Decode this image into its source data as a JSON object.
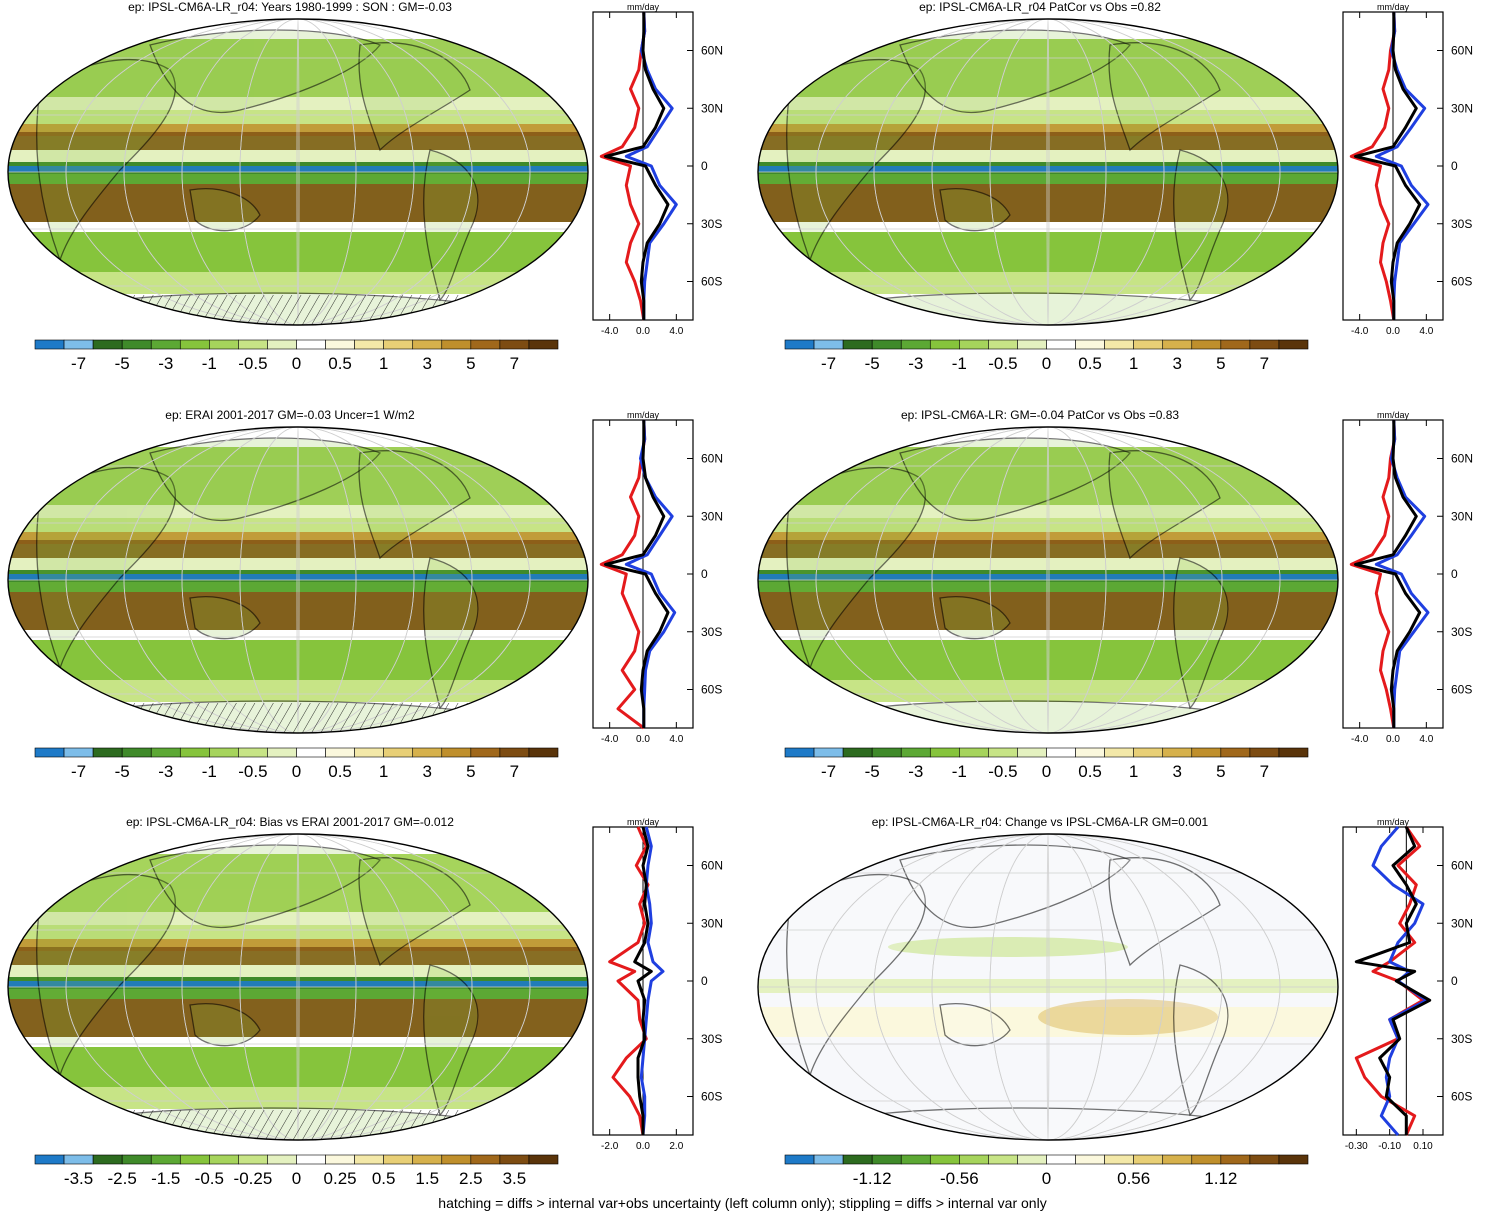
{
  "footnote": "hatching = diffs > internal var+obs uncertainty (left column only); stippling = diffs > internal var only",
  "colors": {
    "palette": [
      "#1e7ac8",
      "#7dbde9",
      "#2d6b1f",
      "#3f8a2a",
      "#5ca834",
      "#86c43c",
      "#a6d45c",
      "#c7e486",
      "#e4f1c0",
      "#ffffff",
      "#fbf8dd",
      "#f3e8a8",
      "#e8cf76",
      "#d6b14c",
      "#bf8f2c",
      "#a0681b",
      "#7d4c12",
      "#5a340a"
    ],
    "obs_line": "#e41a1c",
    "model_line": "#1f3fe0",
    "mean_line": "#000000"
  },
  "panels": [
    {
      "title": "ep: IPSL-CM6A-LR_r04: Years 1980-1999 : SON : GM=-0.03",
      "profile_unit": "mm/day",
      "lat_labels": [
        "60N",
        "30N",
        "0",
        "30S",
        "60S"
      ],
      "profile_ticks": [
        "-4.0",
        "0.0",
        "4.0"
      ],
      "colorbar_labels": [
        "-7",
        "-5",
        "-3",
        "-1",
        "-0.5",
        "0",
        "0.5",
        "1",
        "3",
        "5",
        "7"
      ],
      "chart_data": {
        "type": "line",
        "xlim": [
          -6,
          6
        ],
        "ylim": [
          -80,
          80
        ],
        "x_ticks": [
          -4,
          0,
          4
        ],
        "series": [
          {
            "role": "obs",
            "lat": [
              80,
              70,
              60,
              50,
              40,
              30,
              20,
              10,
              5,
              0,
              -10,
              -20,
              -30,
              -40,
              -50,
              -60,
              -70,
              -80
            ],
            "values": [
              0.1,
              0.2,
              -0.2,
              -0.5,
              -1.5,
              -0.5,
              -1.0,
              -2.5,
              -5.0,
              -1.5,
              -2.0,
              -1.5,
              -0.5,
              -1.5,
              -2.0,
              -1.0,
              -0.3,
              0.1
            ]
          },
          {
            "role": "model",
            "lat": [
              80,
              70,
              60,
              50,
              40,
              30,
              20,
              10,
              5,
              0,
              -10,
              -20,
              -30,
              -40,
              -50,
              -60,
              -70,
              -80
            ],
            "values": [
              0.1,
              0.2,
              -0.2,
              0.5,
              1.5,
              3.5,
              2.0,
              0.5,
              -2.0,
              1.0,
              2.0,
              4.0,
              2.5,
              0.8,
              0.5,
              0.2,
              0.1,
              0.1
            ]
          },
          {
            "role": "mean",
            "lat": [
              80,
              70,
              60,
              50,
              40,
              30,
              20,
              10,
              5,
              0,
              -10,
              -20,
              -30,
              -40,
              -50,
              -60,
              -70,
              -80
            ],
            "values": [
              0.1,
              0.1,
              0.0,
              0.3,
              1.2,
              2.5,
              1.5,
              0.0,
              -4.5,
              0.3,
              1.5,
              3.0,
              2.0,
              0.5,
              0.0,
              -0.2,
              0.1,
              0.1
            ]
          }
        ]
      }
    },
    {
      "title": "ep: IPSL-CM6A-LR_r04 PatCor vs Obs =0.82",
      "profile_unit": "mm/day",
      "lat_labels": [
        "60N",
        "30N",
        "0",
        "30S",
        "60S"
      ],
      "profile_ticks": [
        "-4.0",
        "0.0",
        "4.0"
      ],
      "colorbar_labels": [
        "-7",
        "-5",
        "-3",
        "-1",
        "-0.5",
        "0",
        "0.5",
        "1",
        "3",
        "5",
        "7"
      ],
      "chart_data": {
        "type": "line",
        "xlim": [
          -6,
          6
        ],
        "ylim": [
          -80,
          80
        ],
        "x_ticks": [
          -4,
          0,
          4
        ],
        "series": [
          {
            "role": "obs",
            "lat": [
              80,
              70,
              60,
              50,
              40,
              30,
              20,
              10,
              5,
              0,
              -10,
              -20,
              -30,
              -40,
              -50,
              -60,
              -70,
              -80
            ],
            "values": [
              0.1,
              0.2,
              -0.3,
              -0.5,
              -1.2,
              -0.5,
              -1.0,
              -2.5,
              -5.0,
              -1.5,
              -2.0,
              -1.5,
              -0.5,
              -1.2,
              -1.5,
              -0.8,
              -0.3,
              0.1
            ]
          },
          {
            "role": "model",
            "lat": [
              80,
              70,
              60,
              50,
              40,
              30,
              20,
              10,
              5,
              0,
              -10,
              -20,
              -30,
              -40,
              -50,
              -60,
              -70,
              -80
            ],
            "values": [
              0.1,
              0.2,
              -0.2,
              0.5,
              1.5,
              3.8,
              2.2,
              0.5,
              -2.0,
              1.0,
              2.2,
              4.2,
              2.5,
              0.8,
              0.5,
              0.2,
              0.1,
              0.1
            ]
          },
          {
            "role": "mean",
            "lat": [
              80,
              70,
              60,
              50,
              40,
              30,
              20,
              10,
              5,
              0,
              -10,
              -20,
              -30,
              -40,
              -50,
              -60,
              -70,
              -80
            ],
            "values": [
              0.1,
              0.1,
              0.0,
              0.3,
              1.2,
              2.8,
              1.5,
              0.0,
              -4.5,
              0.3,
              1.5,
              3.2,
              2.0,
              0.5,
              0.0,
              -0.2,
              0.1,
              0.1
            ]
          }
        ]
      }
    },
    {
      "title": "ep: ERAI 2001-2017 GM=-0.03 Uncer=1 W/m2",
      "profile_unit": "mm/day",
      "lat_labels": [
        "60N",
        "30N",
        "0",
        "30S",
        "60S"
      ],
      "profile_ticks": [
        "-4.0",
        "0.0",
        "4.0"
      ],
      "colorbar_labels": [
        "-7",
        "-5",
        "-3",
        "-1",
        "-0.5",
        "0",
        "0.5",
        "1",
        "3",
        "5",
        "7"
      ],
      "chart_data": {
        "type": "line",
        "xlim": [
          -6,
          6
        ],
        "ylim": [
          -80,
          80
        ],
        "x_ticks": [
          -4,
          0,
          4
        ],
        "series": [
          {
            "role": "obs",
            "lat": [
              80,
              70,
              60,
              50,
              40,
              30,
              20,
              10,
              5,
              0,
              -10,
              -20,
              -30,
              -40,
              -50,
              -60,
              -70,
              -80
            ],
            "values": [
              0.1,
              0.2,
              -0.2,
              -0.5,
              -1.5,
              -0.5,
              -1.0,
              -2.5,
              -5.0,
              -2.0,
              -2.5,
              -1.5,
              -0.5,
              -1.0,
              -2.5,
              -1.0,
              -3.0,
              0.1
            ]
          },
          {
            "role": "model",
            "lat": [
              80,
              70,
              60,
              50,
              40,
              30,
              20,
              10,
              5,
              0,
              -10,
              -20,
              -30,
              -40,
              -50,
              -60,
              -70,
              -80
            ],
            "values": [
              0.1,
              0.2,
              -0.3,
              0.3,
              1.5,
              3.5,
              2.0,
              0.5,
              -2.0,
              1.0,
              2.0,
              3.8,
              2.5,
              0.8,
              0.3,
              0.2,
              0.1,
              0.1
            ]
          },
          {
            "role": "mean",
            "lat": [
              80,
              70,
              60,
              50,
              40,
              30,
              20,
              10,
              5,
              0,
              -10,
              -20,
              -30,
              -40,
              -50,
              -60,
              -70,
              -80
            ],
            "values": [
              0.1,
              0.1,
              0.0,
              0.3,
              1.2,
              2.5,
              1.5,
              0.0,
              -4.5,
              0.3,
              1.5,
              3.0,
              2.0,
              0.5,
              0.0,
              -0.2,
              0.1,
              0.1
            ]
          }
        ]
      }
    },
    {
      "title": "ep: IPSL-CM6A-LR: GM=-0.04 PatCor vs Obs =0.83",
      "profile_unit": "mm/day",
      "lat_labels": [
        "60N",
        "30N",
        "0",
        "30S",
        "60S"
      ],
      "profile_ticks": [
        "-4.0",
        "0.0",
        "4.0"
      ],
      "colorbar_labels": [
        "-7",
        "-5",
        "-3",
        "-1",
        "-0.5",
        "0",
        "0.5",
        "1",
        "3",
        "5",
        "7"
      ],
      "chart_data": {
        "type": "line",
        "xlim": [
          -6,
          6
        ],
        "ylim": [
          -80,
          80
        ],
        "x_ticks": [
          -4,
          0,
          4
        ],
        "series": [
          {
            "role": "obs",
            "lat": [
              80,
              70,
              60,
              50,
              40,
              30,
              20,
              10,
              5,
              0,
              -10,
              -20,
              -30,
              -40,
              -50,
              -60,
              -70,
              -80
            ],
            "values": [
              0.1,
              0.2,
              -0.3,
              -0.5,
              -1.2,
              -0.5,
              -1.0,
              -2.5,
              -5.0,
              -1.5,
              -2.0,
              -1.5,
              -0.5,
              -1.2,
              -1.5,
              -0.8,
              -0.3,
              0.1
            ]
          },
          {
            "role": "model",
            "lat": [
              80,
              70,
              60,
              50,
              40,
              30,
              20,
              10,
              5,
              0,
              -10,
              -20,
              -30,
              -40,
              -50,
              -60,
              -70,
              -80
            ],
            "values": [
              0.1,
              0.2,
              -0.2,
              0.5,
              1.5,
              3.8,
              2.2,
              0.5,
              -2.0,
              1.0,
              2.2,
              4.2,
              2.5,
              0.8,
              0.5,
              0.2,
              0.1,
              0.1
            ]
          },
          {
            "role": "mean",
            "lat": [
              80,
              70,
              60,
              50,
              40,
              30,
              20,
              10,
              5,
              0,
              -10,
              -20,
              -30,
              -40,
              -50,
              -60,
              -70,
              -80
            ],
            "values": [
              0.1,
              0.1,
              0.0,
              0.3,
              1.2,
              2.8,
              1.5,
              0.0,
              -4.5,
              0.3,
              1.5,
              3.2,
              2.0,
              0.5,
              0.0,
              -0.2,
              0.1,
              0.1
            ]
          }
        ]
      }
    },
    {
      "title": "ep: IPSL-CM6A-LR_r04: Bias vs ERAI 2001-2017  GM=-0.012",
      "profile_unit": "mm/day",
      "lat_labels": [
        "60N",
        "30N",
        "0",
        "30S",
        "60S"
      ],
      "profile_ticks": [
        "-2.0",
        "0.0",
        "2.0"
      ],
      "colorbar_labels": [
        "-3.5",
        "-2.5",
        "-1.5",
        "-0.5",
        "-0.25",
        "0",
        "0.25",
        "0.5",
        "1.5",
        "2.5",
        "3.5"
      ],
      "chart_data": {
        "type": "line",
        "xlim": [
          -3,
          3
        ],
        "ylim": [
          -80,
          80
        ],
        "x_ticks": [
          -2,
          0,
          2
        ],
        "series": [
          {
            "role": "obs",
            "lat": [
              80,
              70,
              60,
              50,
              40,
              30,
              20,
              10,
              5,
              0,
              -10,
              -20,
              -30,
              -40,
              -50,
              -60,
              -70,
              -80
            ],
            "values": [
              -0.3,
              0.2,
              -0.4,
              0.3,
              -0.2,
              0.1,
              -0.3,
              -2.0,
              -0.5,
              -1.5,
              -0.3,
              -0.2,
              0.2,
              -1.0,
              -1.8,
              -0.8,
              -0.2,
              0.0
            ]
          },
          {
            "role": "model",
            "lat": [
              80,
              70,
              60,
              50,
              40,
              30,
              20,
              10,
              5,
              0,
              -10,
              -20,
              -30,
              -40,
              -50,
              -60,
              -70,
              -80
            ],
            "values": [
              0.2,
              0.5,
              0.3,
              0.2,
              0.4,
              0.5,
              0.3,
              0.6,
              1.2,
              0.5,
              0.3,
              0.2,
              0.1,
              0.0,
              -0.1,
              0.1,
              0.1,
              0.0
            ]
          },
          {
            "role": "mean",
            "lat": [
              80,
              70,
              60,
              50,
              40,
              30,
              20,
              10,
              5,
              0,
              -10,
              -20,
              -30,
              -40,
              -50,
              -60,
              -70,
              -80
            ],
            "values": [
              0.0,
              0.3,
              0.0,
              0.2,
              0.1,
              0.3,
              0.1,
              -0.5,
              0.5,
              -0.3,
              0.1,
              0.0,
              0.1,
              -0.3,
              -0.3,
              -0.2,
              0.0,
              0.0
            ]
          }
        ]
      }
    },
    {
      "title": "ep: IPSL-CM6A-LR_r04: Change vs IPSL-CM6A-LR GM=0.001",
      "profile_unit": "mm/day",
      "lat_labels": [
        "60N",
        "30N",
        "0",
        "30S",
        "60S"
      ],
      "profile_ticks": [
        "-0.30",
        "-0.10",
        "0.10"
      ],
      "colorbar_labels": [
        "-1.12",
        "-0.56",
        "0",
        "0.56",
        "1.12"
      ],
      "chart_data": {
        "type": "line",
        "xlim": [
          -0.38,
          0.22
        ],
        "ylim": [
          -80,
          80
        ],
        "x_ticks": [
          -0.3,
          -0.1,
          0.1
        ],
        "series": [
          {
            "role": "obs",
            "lat": [
              80,
              70,
              60,
              50,
              40,
              30,
              20,
              10,
              5,
              0,
              -10,
              -20,
              -30,
              -40,
              -50,
              -60,
              -70,
              -80
            ],
            "values": [
              0.0,
              0.08,
              -0.05,
              0.06,
              0.02,
              -0.04,
              0.05,
              -0.1,
              -0.2,
              -0.05,
              0.1,
              -0.1,
              -0.05,
              -0.3,
              -0.25,
              -0.15,
              0.05,
              0.0
            ]
          },
          {
            "role": "model",
            "lat": [
              80,
              70,
              60,
              50,
              40,
              30,
              20,
              10,
              5,
              0,
              -10,
              -20,
              -30,
              -40,
              -50,
              -60,
              -70,
              -80
            ],
            "values": [
              -0.05,
              -0.15,
              -0.2,
              -0.08,
              0.1,
              0.05,
              -0.05,
              -0.1,
              0.02,
              -0.05,
              0.12,
              -0.1,
              -0.05,
              -0.1,
              -0.12,
              -0.1,
              -0.15,
              -0.05
            ]
          },
          {
            "role": "mean",
            "lat": [
              80,
              70,
              60,
              50,
              40,
              30,
              20,
              10,
              5,
              0,
              -10,
              -20,
              -30,
              -40,
              -50,
              -60,
              -70,
              -80
            ],
            "values": [
              0.0,
              0.05,
              -0.08,
              0.0,
              0.06,
              0.0,
              0.02,
              -0.3,
              0.05,
              -0.06,
              0.14,
              -0.08,
              -0.04,
              -0.16,
              -0.1,
              -0.12,
              0.0,
              0.0
            ]
          }
        ]
      }
    }
  ]
}
